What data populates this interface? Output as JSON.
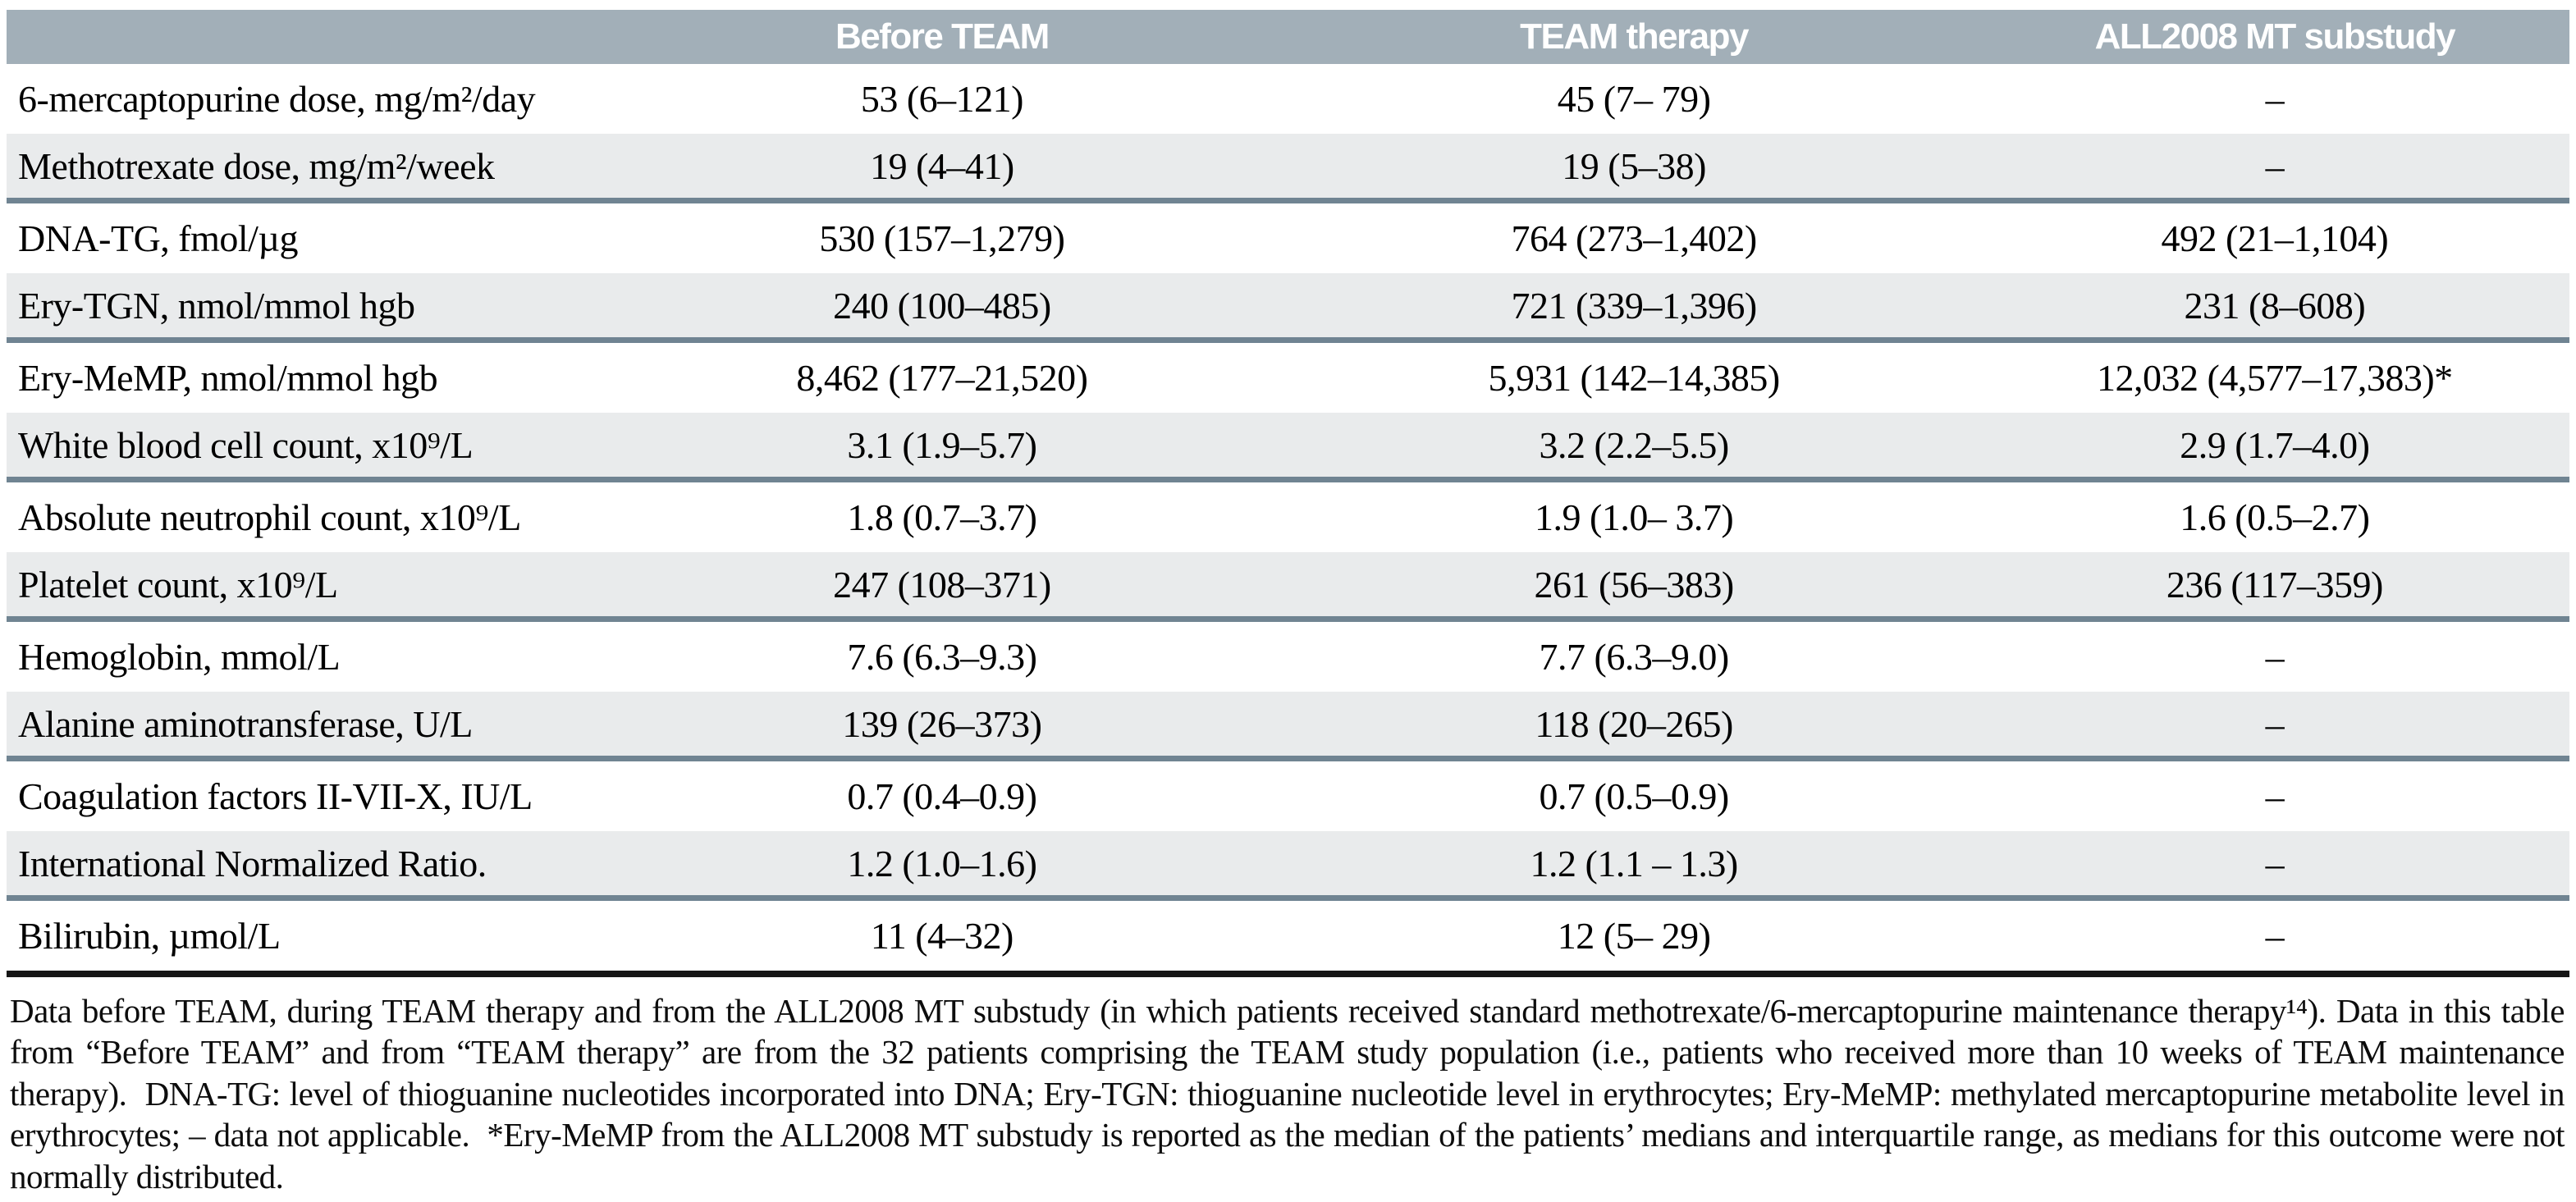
{
  "table": {
    "columns": [
      "",
      "Before TEAM",
      "TEAM therapy",
      "ALL2008 MT substudy"
    ],
    "rows": [
      {
        "label": "6-mercaptopurine dose, mg/m²/day",
        "before": "53 (6–121)",
        "team": "45 (7– 79)",
        "all2008": "–"
      },
      {
        "label": "Methotrexate dose, mg/m²/week",
        "before": "19 (4–41)",
        "team": "19 (5–38)",
        "all2008": "–"
      },
      {
        "label": "DNA-TG, fmol/µg",
        "before": "530 (157–1,279)",
        "team": "764 (273–1,402)",
        "all2008": "492 (21–1,104)"
      },
      {
        "label": "Ery-TGN, nmol/mmol hgb",
        "before": "240 (100–485)",
        "team": "721 (339–1,396)",
        "all2008": "231 (8–608)"
      },
      {
        "label": "Ery-MeMP, nmol/mmol hgb",
        "before": "8,462 (177–21,520)",
        "team": "5,931 (142–14,385)",
        "all2008": "12,032 (4,577–17,383)*"
      },
      {
        "label": "White blood cell count, x10⁹/L",
        "before": "3.1 (1.9–5.7)",
        "team": "3.2 (2.2–5.5)",
        "all2008": "2.9 (1.7–4.0)"
      },
      {
        "label": "Absolute neutrophil count, x10⁹/L",
        "before": "1.8 (0.7–3.7)",
        "team": "1.9 (1.0– 3.7)",
        "all2008": "1.6 (0.5–2.7)"
      },
      {
        "label": "Platelet count, x10⁹/L",
        "before": "247 (108–371)",
        "team": "261 (56–383)",
        "all2008": "236 (117–359)"
      },
      {
        "label": "Hemoglobin, mmol/L",
        "before": "7.6 (6.3–9.3)",
        "team": "7.7 (6.3–9.0)",
        "all2008": "–"
      },
      {
        "label": "Alanine aminotransferase, U/L",
        "before": "139 (26–373)",
        "team": "118 (20–265)",
        "all2008": "–"
      },
      {
        "label": "Coagulation factors II-VII-X, IU/L",
        "before": "0.7 (0.4–0.9)",
        "team": "0.7 (0.5–0.9)",
        "all2008": "–"
      },
      {
        "label": "International Normalized Ratio.",
        "before": "1.2 (1.0–1.6)",
        "team": "1.2 (1.1 – 1.3)",
        "all2008": "–"
      },
      {
        "label": "Bilirubin, µmol/L",
        "before": "11 (4–32)",
        "team": "12 (5– 29)",
        "all2008": "–"
      }
    ]
  },
  "footnote": "Data before TEAM, during TEAM therapy and from the ALL2008 MT substudy (in which patients received standard methotrexate/6-mercaptopurine maintenance therapy¹⁴). Data in this table from “Before TEAM” and from “TEAM therapy” are from the 32 patients comprising the TEAM study population (i.e., patients who received more than 10 weeks of TEAM maintenance therapy).  DNA-TG: level of thioguanine nucleotides incorporated into DNA; Ery-TGN: thioguanine nucleotide level in erythrocytes; Ery-MeMP: methylated mercaptopurine metabolite level in erythrocytes; – data not applicable.  *Ery-MeMP from the ALL2008 MT substudy is reported as the median of the patients’ medians and interquartile range, as medians for this outcome were not normally distributed.",
  "colors": {
    "header_bg": "#a2afb8",
    "shaded_row_bg": "#e9ebec",
    "group_rule": "#708492",
    "bottom_rule": "#161616"
  }
}
